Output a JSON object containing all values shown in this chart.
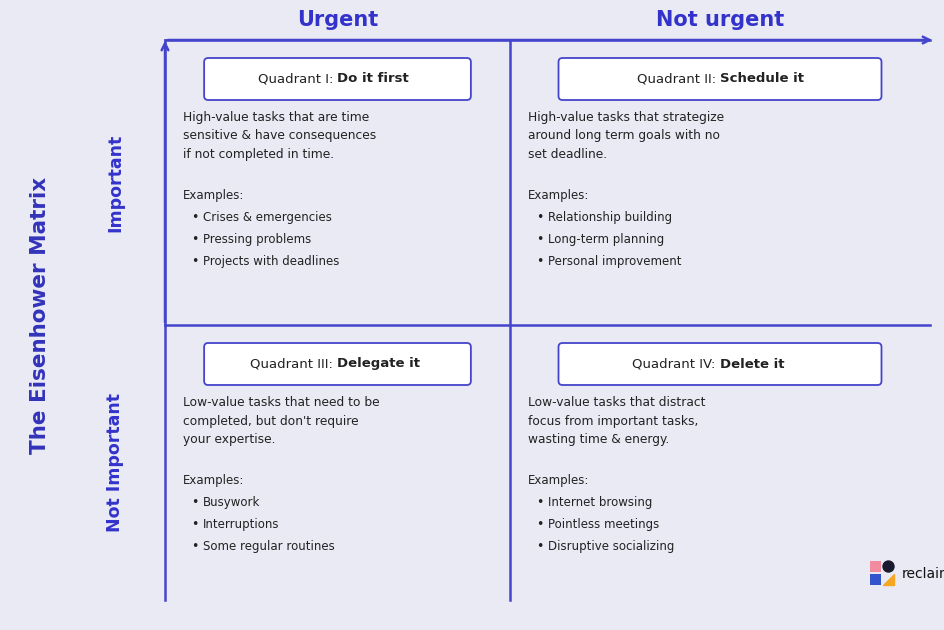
{
  "bg_color": "#eaeaf5",
  "sidebar_color": "#f5c842",
  "sidebar_text": "The Eisenhower Matrix",
  "sidebar_text_color": "#3333bb",
  "axis_color": "#4444cc",
  "urgent_label": "Urgent",
  "not_urgent_label": "Not urgent",
  "important_label": "Important",
  "not_important_label": "Not Important",
  "axis_label_color": "#3333cc",
  "text_color": "#222222",
  "quadrants": [
    {
      "title_plain": "Quadrant I: ",
      "title_bold": "Do it first",
      "description": "High-value tasks that are time\nsensitive & have consequences\nif not completed in time.",
      "examples_label": "Examples:",
      "bullets": [
        "Crises & emergencies",
        "Pressing problems",
        "Projects with deadlines"
      ],
      "row": 1,
      "col": 0
    },
    {
      "title_plain": "Quadrant II: ",
      "title_bold": "Schedule it",
      "description": "High-value tasks that strategize\naround long term goals with no\nset deadline.",
      "examples_label": "Examples:",
      "bullets": [
        "Relationship building",
        "Long-term planning",
        "Personal improvement"
      ],
      "row": 1,
      "col": 1
    },
    {
      "title_plain": "Quadrant III: ",
      "title_bold": "Delegate it",
      "description": "Low-value tasks that need to be\ncompleted, but don't require\nyour expertise.",
      "examples_label": "Examples:",
      "bullets": [
        "Busywork",
        "Interruptions",
        "Some regular routines"
      ],
      "row": 0,
      "col": 0
    },
    {
      "title_plain": "Quadrant IV: ",
      "title_bold": "Delete it",
      "description": "Low-value tasks that distract\nfocus from important tasks,\nwasting time & energy.",
      "examples_label": "Examples:",
      "bullets": [
        "Internet browsing",
        "Pointless meetings",
        "Disruptive socializing"
      ],
      "row": 0,
      "col": 1
    }
  ],
  "logo_colors": [
    "#f28b9e",
    "#1a1a2e",
    "#3355cc",
    "#f5a623"
  ],
  "logo_text": "reclaimai"
}
